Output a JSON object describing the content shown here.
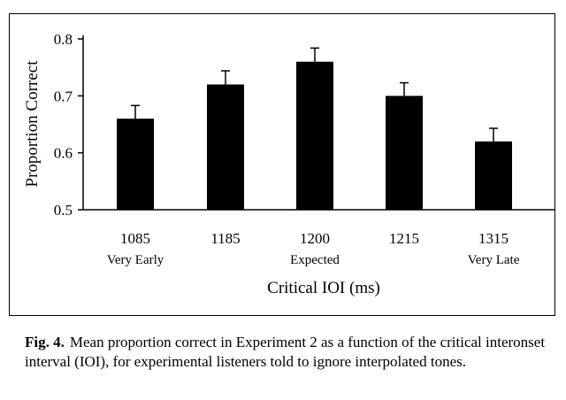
{
  "chart_data": {
    "type": "bar",
    "categories": [
      "1085",
      "1185",
      "1200",
      "1215",
      "1315"
    ],
    "sublabels": [
      "Very Early",
      "",
      "Expected",
      "",
      "Very Late"
    ],
    "values": [
      0.66,
      0.72,
      0.76,
      0.7,
      0.62
    ],
    "errors": [
      0.023,
      0.024,
      0.024,
      0.023,
      0.023
    ],
    "ylabel": "Proportion Correct",
    "xlabel": "Critical IOI (ms)",
    "ylim": [
      0.5,
      0.8
    ],
    "yticks": [
      0.5,
      0.6,
      0.7,
      0.8
    ],
    "grid": false,
    "bar_color": "#000000"
  },
  "caption": {
    "label": "Fig. 4.",
    "text": "Mean proportion correct in Experiment 2 as a function of the critical interonset interval (IOI), for experimental listeners told to ignore interpolated tones."
  }
}
